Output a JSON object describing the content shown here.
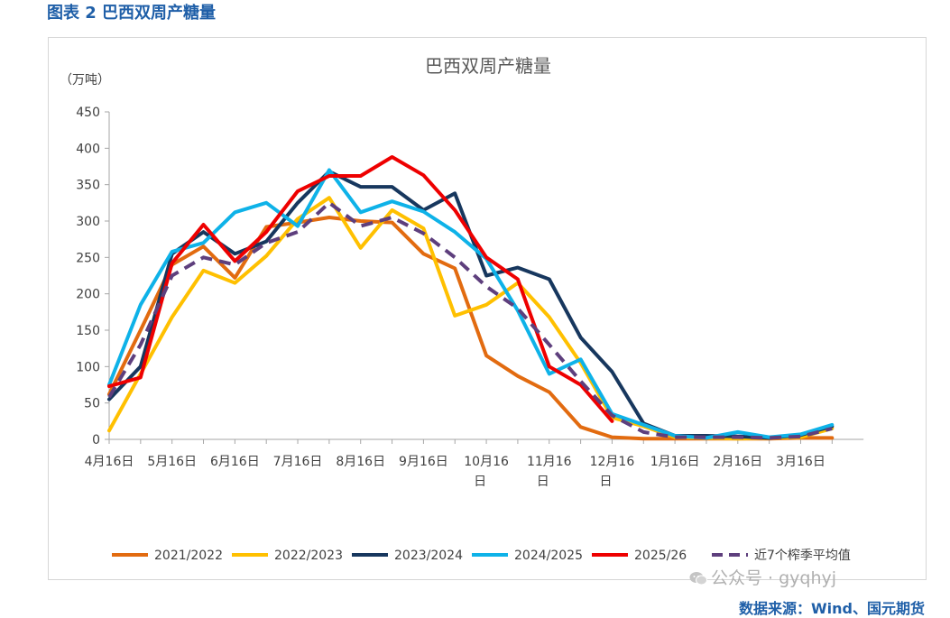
{
  "caption": "图表 2  巴西双周产糖量",
  "source": "数据来源：Wind、国元期货",
  "watermark": "公众号 · gyqhyj",
  "chart_data": {
    "type": "line",
    "title": "巴西双周产糖量",
    "ylabel": "（万吨）",
    "ylim": [
      0,
      450
    ],
    "yticks": [
      0,
      50,
      100,
      150,
      200,
      250,
      300,
      350,
      400,
      450
    ],
    "x_tick_labels": [
      [
        "4月16日"
      ],
      [
        "5月16日"
      ],
      [
        "6月16日"
      ],
      [
        "7月16日"
      ],
      [
        "8月16日"
      ],
      [
        "9月16日"
      ],
      [
        "10月16",
        "日"
      ],
      [
        "11月16",
        "日"
      ],
      [
        "12月16",
        "日"
      ],
      [
        "1月16日"
      ],
      [
        "2月16日"
      ],
      [
        "3月16日"
      ]
    ],
    "points_per_year": 24,
    "legend_position": "bottom",
    "series": [
      {
        "name": "2021/2022",
        "color": "#e26b10",
        "dash": false,
        "values": [
          62,
          150,
          240,
          265,
          222,
          292,
          298,
          305,
          300,
          298,
          255,
          235,
          115,
          87,
          65,
          17,
          3,
          1,
          1,
          1,
          1,
          1,
          2,
          2
        ]
      },
      {
        "name": "2022/2023",
        "color": "#ffc000",
        "dash": false,
        "values": [
          12,
          90,
          168,
          232,
          215,
          252,
          303,
          332,
          263,
          315,
          290,
          170,
          185,
          215,
          168,
          105,
          30,
          18,
          3,
          2,
          1,
          2,
          3,
          15
        ]
      },
      {
        "name": "2023/2024",
        "color": "#17375e",
        "dash": false,
        "values": [
          55,
          100,
          255,
          285,
          255,
          272,
          325,
          368,
          347,
          347,
          315,
          338,
          225,
          236,
          220,
          140,
          93,
          22,
          5,
          5,
          4,
          2,
          6,
          18
        ]
      },
      {
        "name": "2024/2025",
        "color": "#0eb2e8",
        "dash": false,
        "values": [
          75,
          185,
          258,
          270,
          312,
          325,
          293,
          370,
          312,
          327,
          313,
          285,
          248,
          177,
          90,
          110,
          35,
          20,
          5,
          2,
          10,
          3,
          7,
          20
        ]
      },
      {
        "name": "2025/26",
        "color": "#ee0000",
        "dash": false,
        "values": [
          73,
          85,
          242,
          295,
          245,
          285,
          341,
          362,
          362,
          388,
          363,
          315,
          250,
          220,
          100,
          75,
          25
        ]
      },
      {
        "name": "近7个榨季平均值",
        "color": "#5e3f7d",
        "dash": true,
        "values": [
          58,
          130,
          225,
          250,
          240,
          270,
          285,
          325,
          293,
          305,
          283,
          250,
          210,
          180,
          130,
          80,
          33,
          10,
          3,
          3,
          3,
          2,
          4,
          15
        ]
      }
    ]
  }
}
